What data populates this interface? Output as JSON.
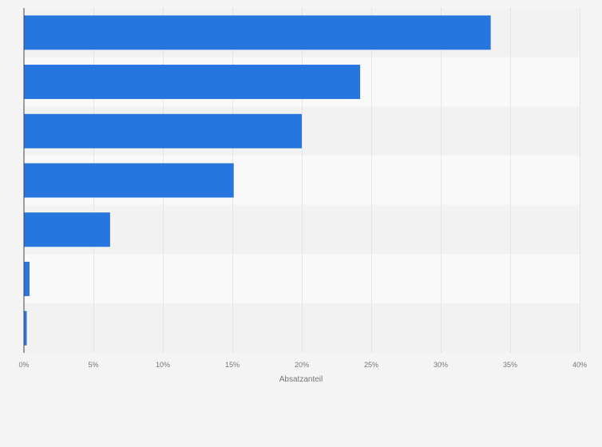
{
  "chart_data": {
    "type": "bar",
    "orientation": "horizontal",
    "categories": [
      "",
      "",
      "",
      "",
      "",
      "",
      ""
    ],
    "values": [
      33.6,
      24.2,
      20.0,
      15.1,
      6.2,
      0.4,
      0.2
    ],
    "xlim": [
      0,
      40
    ],
    "x_ticks": [
      0,
      5,
      10,
      15,
      20,
      25,
      30,
      35,
      40
    ],
    "x_tick_labels": [
      "0%",
      "5%",
      "10%",
      "15%",
      "20%",
      "25%",
      "30%",
      "35%",
      "40%"
    ],
    "xlabel": "Absatzanteil",
    "ylabel": "",
    "title": "",
    "grid": true,
    "legend": "none",
    "colors": {
      "bar": "#2776e0",
      "page_background": "#f4f4f4",
      "band_light": "#f9f9f9",
      "band_dark": "#f2f2f2",
      "grid": "#d6d6d6",
      "axis": "#444444",
      "tick_text": "#777777"
    }
  }
}
